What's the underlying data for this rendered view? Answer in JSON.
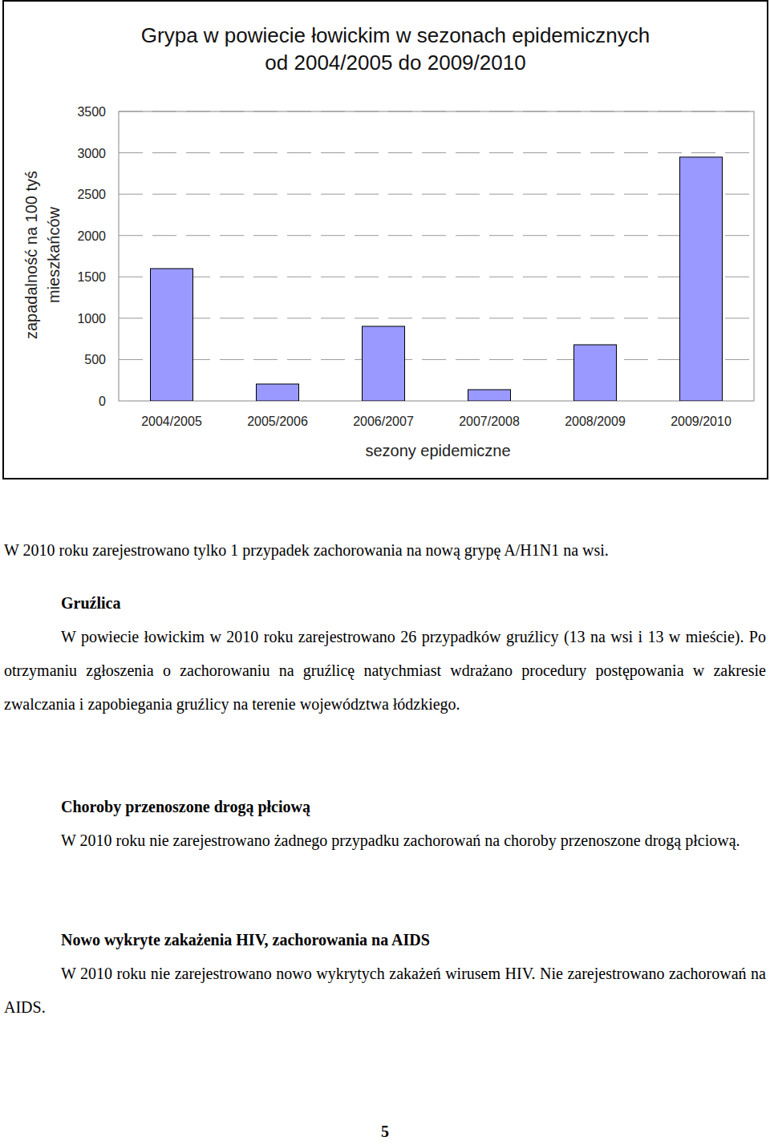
{
  "chart_data": {
    "type": "bar",
    "title": "Grypa w powiecie łowickim w sezonach epidemicznych od 2004/2005 do 2009/2010",
    "y_label": "zapadalność na 100 tyś mieszkańców",
    "x_label": "sezony epidemiczne",
    "categories": [
      "2004/2005",
      "2005/2006",
      "2006/2007",
      "2007/2008",
      "2008/2009",
      "2009/2010"
    ],
    "values": [
      1600,
      204,
      902,
      136,
      679,
      2948
    ],
    "color": "#9999ff",
    "ylim": [
      0,
      3500
    ],
    "yticks": [
      0,
      500,
      1000,
      1500,
      2000,
      2500,
      3000,
      3500
    ],
    "grid": true
  },
  "intro": "W 2010 roku zarejestrowano tylko 1 przypadek zachorowania na nową grypę A/H1N1 na wsi.",
  "sections": [
    {
      "heading": "Gruźlica",
      "text": "W powiecie łowickim w 2010 roku zarejestrowano 26 przypadków gruźlicy (13 na wsi i 13 w mieście). Po otrzymaniu zgłoszenia o zachorowaniu na gruźlicę natychmiast wdrażano procedury postępowania w zakresie zwalczania i zapobiegania gruźlicy na terenie województwa łódzkiego."
    },
    {
      "heading": "Choroby przenoszone drogą płciową",
      "text": "W 2010 roku nie zarejestrowano żadnego przypadku zachorowań na choroby przenoszone drogą płciową."
    },
    {
      "heading": "Nowo wykryte zakażenia HIV, zachorowania na AIDS",
      "text": "W 2010 roku nie zarejestrowano nowo wykrytych zakażeń wirusem HIV. Nie zarejestrowano zachorowań na AIDS."
    }
  ],
  "page_number": "5"
}
